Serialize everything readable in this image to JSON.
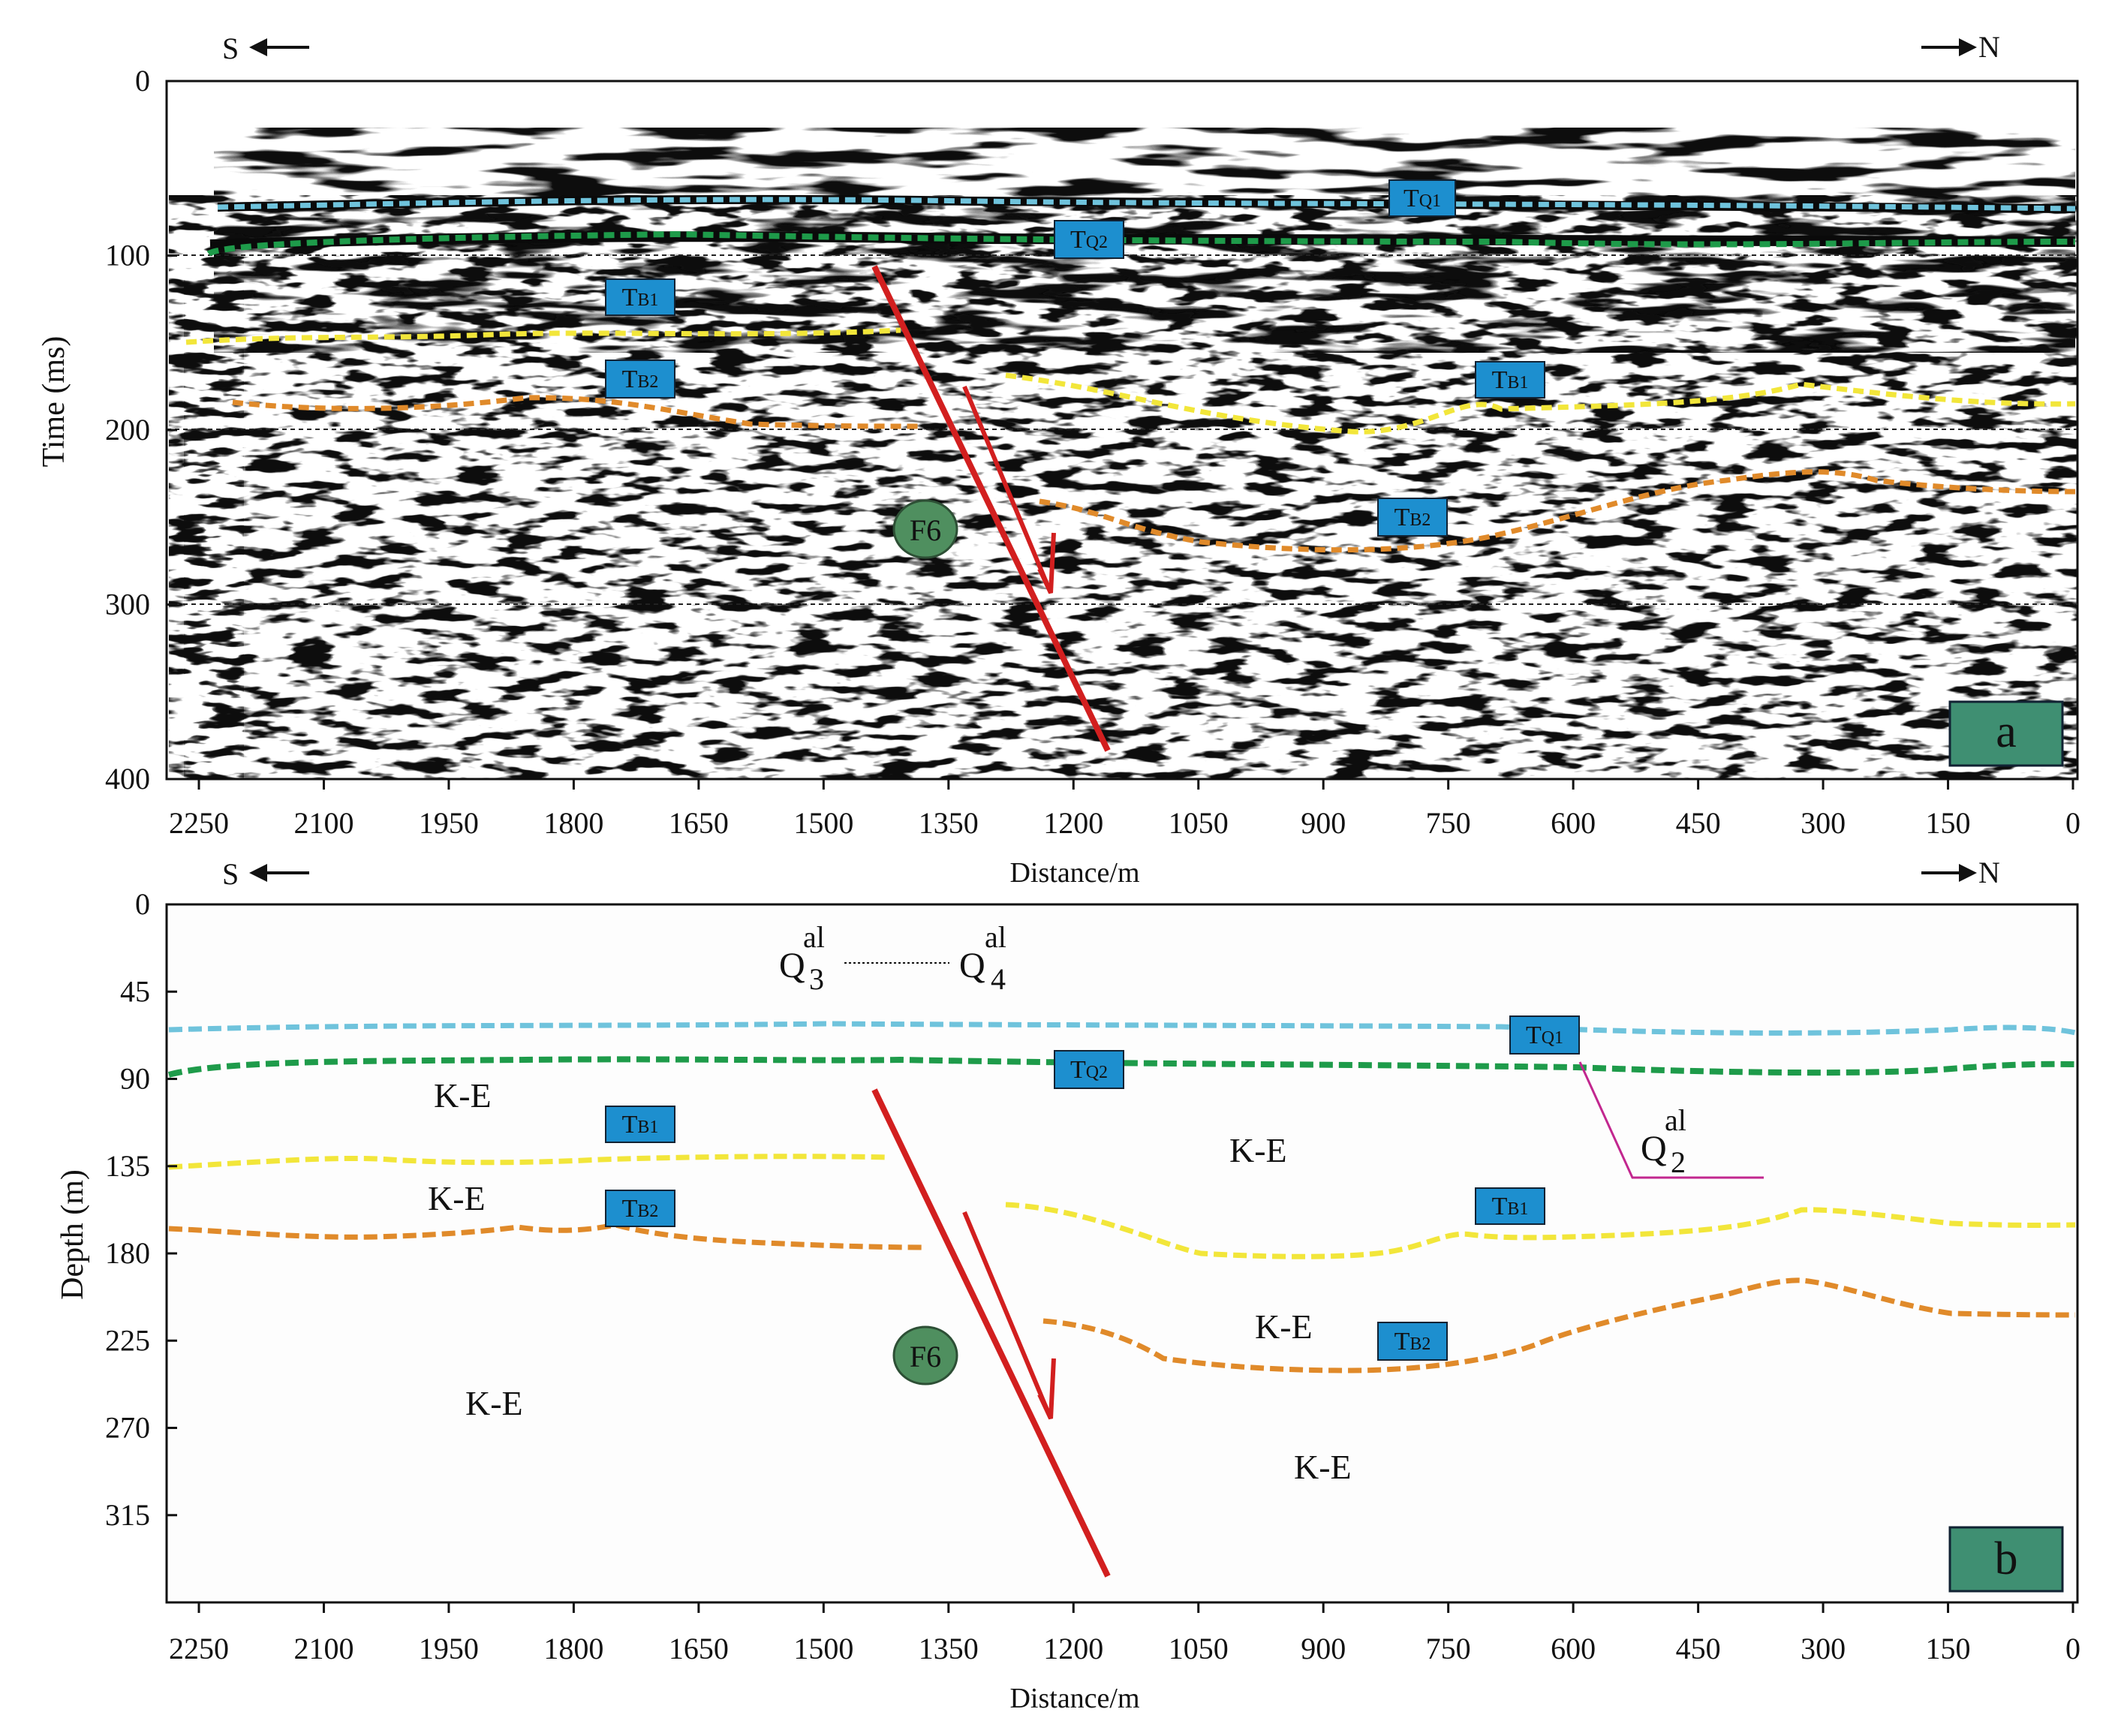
{
  "panel_a": {
    "direction_left": "S",
    "direction_right": "N",
    "y_axis_label": "Time (ms)",
    "y_ticks": [
      "0",
      "100",
      "200",
      "300",
      "400"
    ],
    "x_axis_label": "Distance/m",
    "x_ticks": [
      "2250",
      "2100",
      "1950",
      "1800",
      "1650",
      "1500",
      "1350",
      "1200",
      "1050",
      "900",
      "750",
      "600",
      "450",
      "300",
      "150",
      "0"
    ],
    "panel_tag": "a",
    "fault_label": "F6",
    "horizon_tags": {
      "tq1": {
        "main": "T",
        "sub": "Q1"
      },
      "tq2": {
        "main": "T",
        "sub": "Q2"
      },
      "tb1_south": {
        "main": "T",
        "sub": "B1"
      },
      "tb1_north": {
        "main": "T",
        "sub": "B1"
      },
      "tb2_south": {
        "main": "T",
        "sub": "B2"
      },
      "tb2_north": {
        "main": "T",
        "sub": "B2"
      }
    }
  },
  "panel_b": {
    "direction_left": "S",
    "direction_right": "N",
    "y_axis_label": "Depth (m)",
    "y_ticks": [
      "0",
      "45",
      "90",
      "135",
      "180",
      "225",
      "270",
      "315"
    ],
    "x_axis_label": "Distance/m",
    "x_ticks": [
      "2250",
      "2100",
      "1950",
      "1800",
      "1650",
      "1500",
      "1350",
      "1200",
      "1050",
      "900",
      "750",
      "600",
      "450",
      "300",
      "150",
      "0"
    ],
    "panel_tag": "b",
    "fault_label": "F6",
    "unit_labels": [
      "K-E",
      "K-E",
      "K-E",
      "K-E",
      "K-E",
      "K-E"
    ],
    "quaternary_q3": {
      "base": "Q",
      "sup": "al",
      "sub": "3"
    },
    "quaternary_q4": {
      "base": "Q",
      "sup": "al",
      "sub": "4"
    },
    "quaternary_q2": {
      "base": "Q",
      "sup": "al",
      "sub": "2"
    },
    "horizon_tags": {
      "tq1": {
        "main": "T",
        "sub": "Q1"
      },
      "tq2": {
        "main": "T",
        "sub": "Q2"
      },
      "tb1_south": {
        "main": "T",
        "sub": "B1"
      },
      "tb1_north": {
        "main": "T",
        "sub": "B1"
      },
      "tb2_south": {
        "main": "T",
        "sub": "B2"
      },
      "tb2_north": {
        "main": "T",
        "sub": "B2"
      }
    }
  },
  "colors": {
    "tq1": "#6fc3dc",
    "tq2": "#1e9b4a",
    "tb1": "#f2e63a",
    "tb2": "#e08a2a",
    "fault": "#d21f1f",
    "tag_fill": "#1d8fcf",
    "panel_tag_fill": "#3f8f72",
    "fault_badge_fill": "#4f8f5f",
    "q2_line": "#c2278f"
  }
}
